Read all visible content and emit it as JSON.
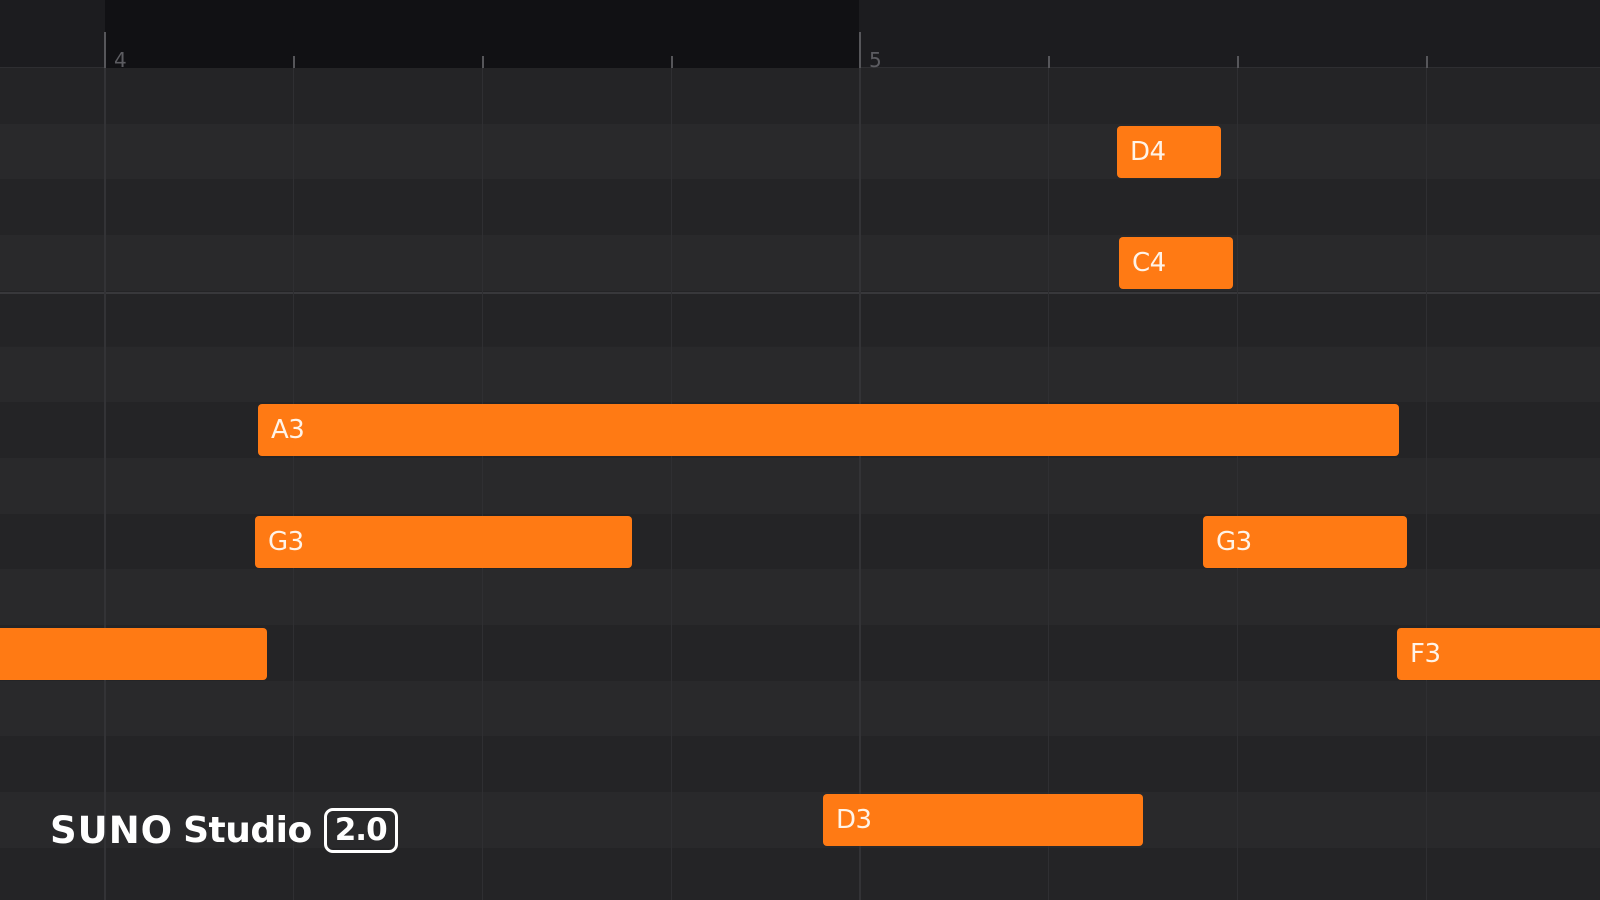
{
  "ruler": {
    "bars": [
      {
        "number": "4"
      },
      {
        "number": "5"
      }
    ]
  },
  "notes": [
    {
      "id": "d4",
      "label": "D4"
    },
    {
      "id": "c4",
      "label": "C4"
    },
    {
      "id": "a3",
      "label": "A3"
    },
    {
      "id": "g3-first",
      "label": "G3"
    },
    {
      "id": "g3-second",
      "label": "G3"
    },
    {
      "id": "left-partial",
      "label": ""
    },
    {
      "id": "f3",
      "label": "F3"
    },
    {
      "id": "d3",
      "label": "D3"
    }
  ],
  "brand": {
    "name": "SUNO",
    "product": "Studio",
    "version": "2.0"
  },
  "colors": {
    "note_fill": "#ff7a14",
    "background": "#252527",
    "ruler_background": "#1c1c1f",
    "loop_region": "#111114"
  }
}
